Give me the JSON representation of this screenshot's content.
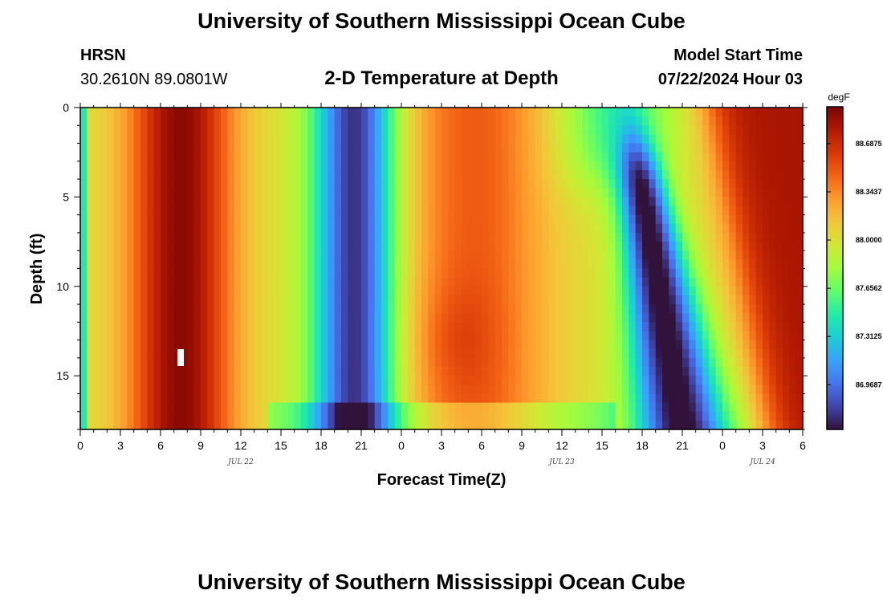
{
  "header": {
    "title": "University of Southern Mississippi Ocean Cube",
    "station": "HRSN",
    "coords": "30.2610N  89.0801W",
    "subtitle": "2-D Temperature at Depth",
    "model_label": "Model Start Time",
    "model_time": "07/22/2024 Hour 03",
    "footer_title": "University of Southern Mississippi Ocean Cube"
  },
  "chart_data": {
    "type": "heatmap",
    "xlabel": "Forecast Time(Z)",
    "ylabel": "Depth (ft)",
    "xlim": [
      0,
      54
    ],
    "ylim": [
      0,
      18
    ],
    "x_ticks": [
      {
        "v": 0,
        "label": "0"
      },
      {
        "v": 3,
        "label": "3"
      },
      {
        "v": 6,
        "label": "6"
      },
      {
        "v": 9,
        "label": "9"
      },
      {
        "v": 12,
        "label": "12"
      },
      {
        "v": 15,
        "label": "15"
      },
      {
        "v": 18,
        "label": "18"
      },
      {
        "v": 21,
        "label": "21"
      },
      {
        "v": 24,
        "label": "0"
      },
      {
        "v": 27,
        "label": "3"
      },
      {
        "v": 30,
        "label": "6"
      },
      {
        "v": 33,
        "label": "9"
      },
      {
        "v": 36,
        "label": "12"
      },
      {
        "v": 39,
        "label": "15"
      },
      {
        "v": 42,
        "label": "18"
      },
      {
        "v": 45,
        "label": "21"
      },
      {
        "v": 48,
        "label": "0"
      },
      {
        "v": 51,
        "label": "3"
      },
      {
        "v": 54,
        "label": "6"
      }
    ],
    "date_labels": [
      {
        "v": 12,
        "label": "JUL 22"
      },
      {
        "v": 36,
        "label": "JUL 23"
      },
      {
        "v": 51,
        "label": "JUL 24"
      }
    ],
    "y_ticks": [
      {
        "v": 0,
        "label": "0"
      },
      {
        "v": 5,
        "label": "5"
      },
      {
        "v": 10,
        "label": "10"
      },
      {
        "v": 15,
        "label": "15"
      }
    ],
    "colorbar": {
      "unit": "degF",
      "min": 86.65,
      "max": 88.95,
      "labels": [
        "88.6875",
        "88.3437",
        "88.0000",
        "87.6562",
        "87.3125",
        "86.9687"
      ]
    },
    "colors": {
      "scale": [
        "#30123b",
        "#4145ab",
        "#4675ed",
        "#39a2fc",
        "#1bcfd4",
        "#24eca6",
        "#61fc6c",
        "#a4fc3b",
        "#d1e834",
        "#f3c63a",
        "#fe9b2d",
        "#f36315",
        "#d93806",
        "#b11901",
        "#7a0402"
      ]
    }
  }
}
